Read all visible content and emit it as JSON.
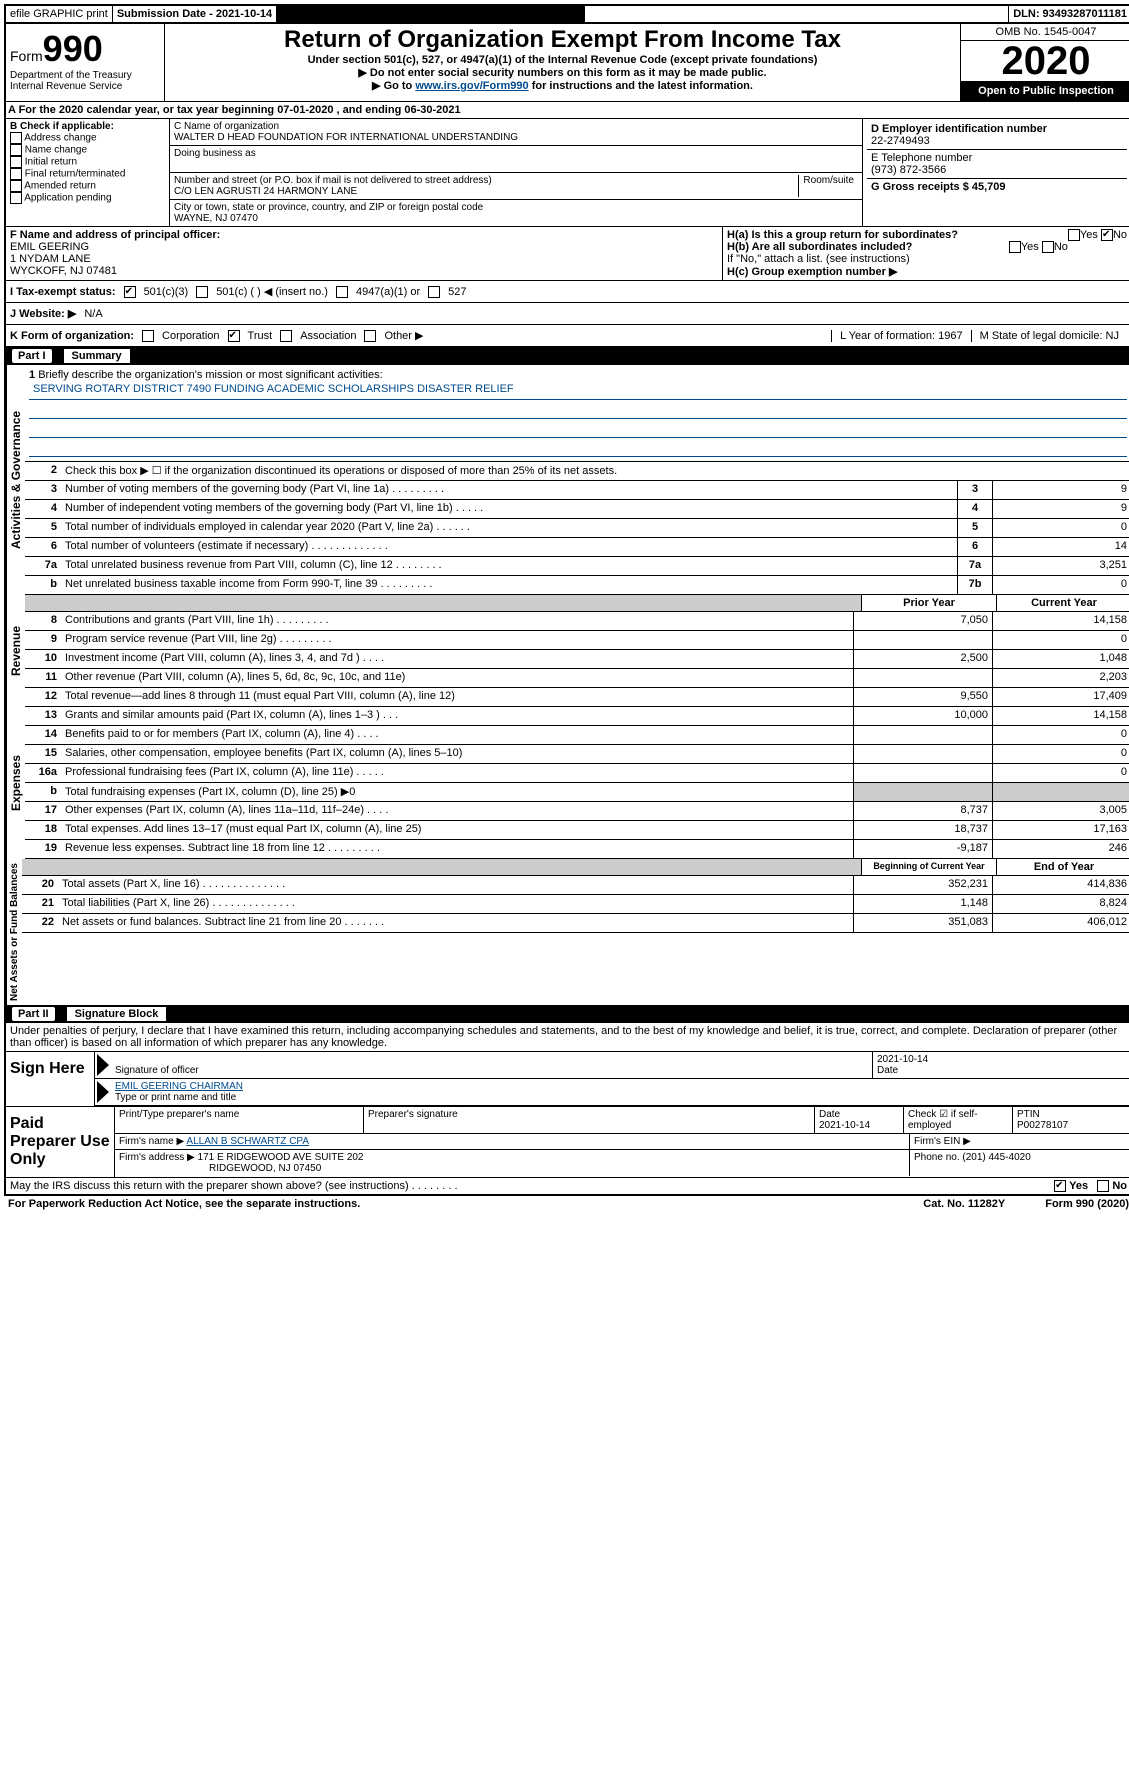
{
  "topbar": {
    "efile": "efile GRAPHIC print",
    "subdate_label": "Submission Date - 2021-10-14",
    "dln": "DLN: 93493287011181"
  },
  "header": {
    "form_label": "Form",
    "form_num": "990",
    "dept": "Department of the Treasury\nInternal Revenue Service",
    "title": "Return of Organization Exempt From Income Tax",
    "subtitle": "Under section 501(c), 527, or 4947(a)(1) of the Internal Revenue Code (except private foundations)",
    "arrow1": "▶ Do not enter social security numbers on this form as it may be made public.",
    "arrow2_pre": "▶ Go to ",
    "arrow2_link": "www.irs.gov/Form990",
    "arrow2_post": " for instructions and the latest information.",
    "omb": "OMB No. 1545-0047",
    "year": "2020",
    "openpublic": "Open to Public Inspection"
  },
  "period": "A For the 2020 calendar year, or tax year beginning 07-01-2020     , and ending 06-30-2021",
  "colB": {
    "label": "B Check if applicable:",
    "items": [
      "Address change",
      "Name change",
      "Initial return",
      "Final return/terminated",
      "Amended return",
      "Application pending"
    ]
  },
  "colC": {
    "name_label": "C Name of organization",
    "name": "WALTER D HEAD FOUNDATION FOR INTERNATIONAL UNDERSTANDING",
    "dba": "Doing business as",
    "addr_label": "Number and street (or P.O. box if mail is not delivered to street address)",
    "room": "Room/suite",
    "addr": "C/O LEN AGRUSTI 24 HARMONY LANE",
    "city_label": "City or town, state or province, country, and ZIP or foreign postal code",
    "city": "WAYNE, NJ  07470"
  },
  "colD": {
    "ein_label": "D Employer identification number",
    "ein": "22-2749493",
    "phone_label": "E Telephone number",
    "phone": "(973) 872-3566",
    "gross_label": "G Gross receipts $ 45,709"
  },
  "rowF": {
    "label": "F  Name and address of principal officer:",
    "name": "EMIL GEERING",
    "addr1": "1 NYDAM LANE",
    "addr2": "WYCKOFF, NJ  07481"
  },
  "rowH": {
    "ha": "H(a)  Is this a group return for subordinates?",
    "hb": "H(b)  Are all subordinates included?",
    "hb_note": "If \"No,\" attach a list. (see instructions)",
    "hc": "H(c)  Group exemption number ▶"
  },
  "rowI": {
    "label": "I  Tax-exempt status:",
    "opts": [
      "501(c)(3)",
      "501(c) (   ) ◀ (insert no.)",
      "4947(a)(1) or",
      "527"
    ]
  },
  "rowJ": {
    "label": "J  Website: ▶",
    "val": "N/A"
  },
  "rowK": {
    "label": "K Form of organization:",
    "opts": [
      "Corporation",
      "Trust",
      "Association",
      "Other ▶"
    ],
    "L": "L Year of formation: 1967",
    "M": "M State of legal domicile: NJ"
  },
  "part1": {
    "num": "Part I",
    "title": "Summary"
  },
  "governance": {
    "label": "Activities & Governance",
    "line1": "Briefly describe the organization's mission or most significant activities:",
    "line1_text": "SERVING ROTARY DISTRICT 7490 FUNDING ACADEMIC SCHOLARSHIPS DISASTER RELIEF",
    "line2": "Check this box ▶ ☐  if the organization discontinued its operations or disposed of more than 25% of its net assets.",
    "line3": "Number of voting members of the governing body (Part VI, line 1a)   .    .    .    .    .    .    .    .    .",
    "line4": "Number of independent voting members of the governing body (Part VI, line 1b)   .    .    .    .    .",
    "line5": "Total number of individuals employed in calendar year 2020 (Part V, line 2a)   .    .    .    .    .    .",
    "line6": "Total number of volunteers (estimate if necessary)   .    .    .    .    .    .    .    .    .    .    .    .    .",
    "line7a": "Total unrelated business revenue from Part VIII, column (C), line 12   .    .    .    .    .    .    .    .",
    "line7b": "Net unrelated business taxable income from Form 990-T, line 39   .    .    .    .    .    .    .    .    .",
    "v3": "9",
    "v4": "9",
    "v5": "0",
    "v6": "14",
    "v7a": "3,251",
    "v7b": "0"
  },
  "revenue": {
    "label": "Revenue",
    "hdr_prior": "Prior Year",
    "hdr_curr": "Current Year",
    "rows": [
      {
        "n": "8",
        "d": "Contributions and grants (Part VIII, line 1h)   .    .    .    .    .    .    .    .    .",
        "p": "7,050",
        "c": "14,158"
      },
      {
        "n": "9",
        "d": "Program service revenue (Part VIII, line 2g)    .    .    .    .    .    .    .    .    .",
        "p": "",
        "c": "0"
      },
      {
        "n": "10",
        "d": "Investment income (Part VIII, column (A), lines 3, 4, and 7d )    .    .    .    .",
        "p": "2,500",
        "c": "1,048"
      },
      {
        "n": "11",
        "d": "Other revenue (Part VIII, column (A), lines 5, 6d, 8c, 9c, 10c, and 11e)",
        "p": "",
        "c": "2,203"
      },
      {
        "n": "12",
        "d": "Total revenue—add lines 8 through 11 (must equal Part VIII, column (A), line 12)",
        "p": "9,550",
        "c": "17,409"
      }
    ]
  },
  "expenses": {
    "label": "Expenses",
    "rows": [
      {
        "n": "13",
        "d": "Grants and similar amounts paid (Part IX, column (A), lines 1–3 )    .    .    .",
        "p": "10,000",
        "c": "14,158"
      },
      {
        "n": "14",
        "d": "Benefits paid to or for members (Part IX, column (A), line 4)    .    .    .    .",
        "p": "",
        "c": "0"
      },
      {
        "n": "15",
        "d": "Salaries, other compensation, employee benefits (Part IX, column (A), lines 5–10)",
        "p": "",
        "c": "0"
      },
      {
        "n": "16a",
        "d": "Professional fundraising fees (Part IX, column (A), line 11e)    .    .    .    .    .",
        "p": "",
        "c": "0"
      },
      {
        "n": "b",
        "d": "Total fundraising expenses (Part IX, column (D), line 25) ▶0",
        "p": "",
        "c": "",
        "gray": true
      },
      {
        "n": "17",
        "d": "Other expenses (Part IX, column (A), lines 11a–11d, 11f–24e)    .    .    .    .",
        "p": "8,737",
        "c": "3,005"
      },
      {
        "n": "18",
        "d": "Total expenses. Add lines 13–17 (must equal Part IX, column (A), line 25)",
        "p": "18,737",
        "c": "17,163"
      },
      {
        "n": "19",
        "d": "Revenue less expenses. Subtract line 18 from line 12   .    .    .    .    .    .    .    .    .",
        "p": "-9,187",
        "c": "246"
      }
    ]
  },
  "netassets": {
    "label": "Net Assets or Fund Balances",
    "hdr_beg": "Beginning of Current Year",
    "hdr_end": "End of Year",
    "rows": [
      {
        "n": "20",
        "d": "Total assets (Part X, line 16)   .    .    .    .    .    .    .    .    .    .    .    .    .    .",
        "p": "352,231",
        "c": "414,836"
      },
      {
        "n": "21",
        "d": "Total liabilities (Part X, line 26)   .    .    .    .    .    .    .    .    .    .    .    .    .    .",
        "p": "1,148",
        "c": "8,824"
      },
      {
        "n": "22",
        "d": "Net assets or fund balances. Subtract line 21 from line 20   .    .    .    .    .    .    .",
        "p": "351,083",
        "c": "406,012"
      }
    ]
  },
  "part2": {
    "num": "Part II",
    "title": "Signature Block"
  },
  "perjury": "Under penalties of perjury, I declare that I have examined this return, including accompanying schedules and statements, and to the best of my knowledge and belief, it is true, correct, and complete. Declaration of preparer (other than officer) is based on all information of which preparer has any knowledge.",
  "sign": {
    "label": "Sign Here",
    "sig_label": "Signature of officer",
    "date_label": "Date",
    "date": "2021-10-14",
    "name": "EMIL GEERING CHAIRMAN",
    "name_label": "Type or print name and title"
  },
  "paid": {
    "label": "Paid Preparer Use Only",
    "h1": "Print/Type preparer's name",
    "h2": "Preparer's signature",
    "h3": "Date",
    "date": "2021-10-14",
    "h4": "Check ☑ if self-employed",
    "h5": "PTIN",
    "ptin": "P00278107",
    "firm_label": "Firm's name     ▶",
    "firm": "ALLAN B SCHWARTZ CPA",
    "ein_label": "Firm's EIN ▶",
    "addr_label": "Firm's address ▶",
    "addr": "171 E RIDGEWOOD AVE SUITE 202",
    "addr2": "RIDGEWOOD, NJ  07450",
    "phone_label": "Phone no. (201) 445-4020"
  },
  "footer": {
    "discuss": "May the IRS discuss this return with the preparer shown above? (see instructions)    .    .    .    .    .    .    .    .",
    "yes": "Yes",
    "no": "No",
    "notice": "For Paperwork Reduction Act Notice, see the separate instructions.",
    "cat": "Cat. No. 11282Y",
    "form": "Form 990 (2020)"
  }
}
